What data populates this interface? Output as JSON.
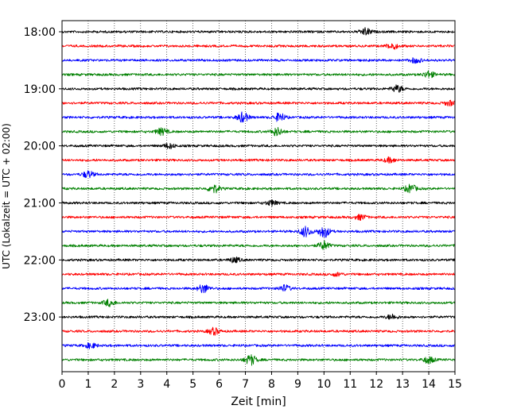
{
  "chart_data": {
    "type": "line",
    "title": "",
    "xlabel": "Zeit  [min]",
    "ylabel": "UTC (Lokalzeit = UTC + 02:00)",
    "xlim": [
      0,
      15
    ],
    "x_ticks": [
      "0",
      "1",
      "2",
      "3",
      "4",
      "5",
      "6",
      "7",
      "8",
      "9",
      "10",
      "11",
      "12",
      "13",
      "14",
      "15"
    ],
    "y_tick_labels": [
      "18:00",
      "19:00",
      "20:00",
      "21:00",
      "22:00",
      "23:00"
    ],
    "grid": {
      "vertical": true,
      "style": "dotted"
    },
    "trace_interval_min": 15,
    "trace_start": "18:00",
    "trace_end": "23:45",
    "color_cycle": [
      "#000000",
      "#ff0000",
      "#0000ff",
      "#008000"
    ],
    "series": [
      {
        "start": "18:00",
        "color": "#000000",
        "events": [
          {
            "x": 11.6,
            "amp": 4
          }
        ]
      },
      {
        "start": "18:15",
        "color": "#ff0000",
        "events": [
          {
            "x": 12.6,
            "amp": 4
          }
        ]
      },
      {
        "start": "18:30",
        "color": "#0000ff",
        "events": [
          {
            "x": 13.5,
            "amp": 3
          }
        ]
      },
      {
        "start": "18:45",
        "color": "#008000",
        "events": [
          {
            "x": 14.0,
            "amp": 4
          }
        ]
      },
      {
        "start": "19:00",
        "color": "#000000",
        "events": [
          {
            "x": 12.8,
            "amp": 4
          }
        ]
      },
      {
        "start": "19:15",
        "color": "#ff0000",
        "events": [
          {
            "x": 14.8,
            "amp": 3
          }
        ]
      },
      {
        "start": "19:30",
        "color": "#0000ff",
        "events": [
          {
            "x": 6.9,
            "amp": 6
          },
          {
            "x": 8.3,
            "amp": 5
          }
        ]
      },
      {
        "start": "19:45",
        "color": "#008000",
        "events": [
          {
            "x": 3.8,
            "amp": 4
          },
          {
            "x": 8.2,
            "amp": 5
          }
        ]
      },
      {
        "start": "20:00",
        "color": "#000000",
        "events": [
          {
            "x": 4.1,
            "amp": 3
          }
        ]
      },
      {
        "start": "20:15",
        "color": "#ff0000",
        "events": [
          {
            "x": 12.5,
            "amp": 3
          }
        ]
      },
      {
        "start": "20:30",
        "color": "#0000ff",
        "events": [
          {
            "x": 1.0,
            "amp": 4
          }
        ]
      },
      {
        "start": "20:45",
        "color": "#008000",
        "events": [
          {
            "x": 5.8,
            "amp": 5
          },
          {
            "x": 13.3,
            "amp": 5
          }
        ]
      },
      {
        "start": "21:00",
        "color": "#000000",
        "events": [
          {
            "x": 8.0,
            "amp": 3
          }
        ]
      },
      {
        "start": "21:15",
        "color": "#ff0000",
        "events": [
          {
            "x": 11.4,
            "amp": 3
          }
        ]
      },
      {
        "start": "21:30",
        "color": "#0000ff",
        "events": [
          {
            "x": 9.3,
            "amp": 6
          },
          {
            "x": 10.0,
            "amp": 7
          }
        ]
      },
      {
        "start": "21:45",
        "color": "#008000",
        "events": [
          {
            "x": 10.0,
            "amp": 5
          }
        ]
      },
      {
        "start": "22:00",
        "color": "#000000",
        "events": [
          {
            "x": 6.6,
            "amp": 3
          }
        ]
      },
      {
        "start": "22:15",
        "color": "#ff0000",
        "events": [
          {
            "x": 10.5,
            "amp": 2
          }
        ]
      },
      {
        "start": "22:30",
        "color": "#0000ff",
        "events": [
          {
            "x": 5.4,
            "amp": 5
          },
          {
            "x": 8.5,
            "amp": 4
          }
        ]
      },
      {
        "start": "22:45",
        "color": "#008000",
        "events": [
          {
            "x": 1.8,
            "amp": 4
          }
        ]
      },
      {
        "start": "23:00",
        "color": "#000000",
        "events": [
          {
            "x": 12.6,
            "amp": 3
          }
        ]
      },
      {
        "start": "23:15",
        "color": "#ff0000",
        "events": [
          {
            "x": 5.8,
            "amp": 4
          }
        ]
      },
      {
        "start": "23:30",
        "color": "#0000ff",
        "events": [
          {
            "x": 1.1,
            "amp": 3
          }
        ]
      },
      {
        "start": "23:45",
        "color": "#008000",
        "events": [
          {
            "x": 7.2,
            "amp": 6
          },
          {
            "x": 14.0,
            "amp": 4
          }
        ]
      }
    ]
  }
}
